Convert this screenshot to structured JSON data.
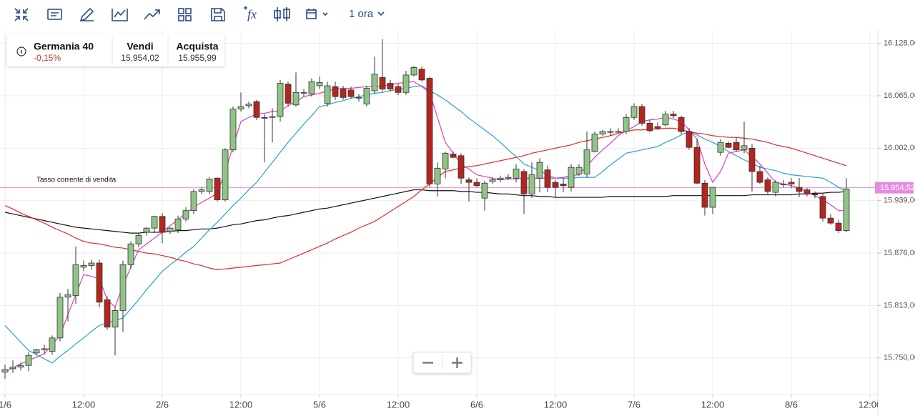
{
  "toolbar": {
    "timeframe": "1 ora"
  },
  "instrument": {
    "name": "Germania 40",
    "change": "-0,15%",
    "sell_label": "Vendi",
    "sell_price": "15.954,02",
    "buy_label": "Acquista",
    "buy_price": "15.955,99"
  },
  "chart_data": {
    "type": "candlestick",
    "categories": [
      "1/6",
      null,
      null,
      null,
      null,
      null,
      null,
      null,
      null,
      null,
      "12:00",
      null,
      null,
      null,
      null,
      null,
      null,
      null,
      null,
      null,
      "2/6",
      null,
      null,
      null,
      null,
      null,
      null,
      null,
      null,
      null,
      "12:00",
      null,
      null,
      null,
      null,
      null,
      null,
      null,
      null,
      null,
      "5/6",
      null,
      null,
      null,
      null,
      null,
      null,
      null,
      null,
      null,
      "12:00",
      null,
      null,
      null,
      null,
      null,
      null,
      null,
      null,
      null,
      "6/6",
      null,
      null,
      null,
      null,
      null,
      null,
      null,
      null,
      null,
      "12:00",
      null,
      null,
      null,
      null,
      null,
      null,
      null,
      null,
      null,
      "7/6",
      null,
      null,
      null,
      null,
      null,
      null,
      null,
      null,
      null,
      "12:00",
      null,
      null,
      null,
      null,
      null,
      null,
      null,
      null,
      null,
      "8/6",
      null,
      null,
      null,
      null,
      null,
      null,
      null,
      null,
      null,
      "12:00"
    ],
    "open": [
      15733,
      15737,
      15739,
      15741,
      15756,
      15760,
      15758,
      15774,
      15823,
      15825,
      15859,
      15861,
      15864,
      15820,
      15787,
      15807,
      15862,
      15887,
      15901,
      15906,
      15920,
      15902,
      15904,
      15917,
      15927,
      15950,
      15950,
      15966,
      15940,
      16000,
      16049,
      16053,
      16058,
      16039,
      16039,
      16040,
      16079,
      16054,
      16069,
      16067,
      16077,
      16056,
      16076,
      16073,
      16072,
      16063,
      16055,
      16071,
      16087,
      16080,
      16076,
      16069,
      16090,
      16097,
      16086,
      15959,
      15977,
      15995,
      15993,
      15964,
      15961,
      15942,
      15962,
      15964,
      15966,
      15966,
      15974,
      15947,
      15966,
      15976,
      15961,
      15959,
      15955,
      15971,
      15971,
      15998,
      16019,
      16021,
      16022,
      16022,
      16039,
      16052,
      16032,
      16028,
      16030,
      16043,
      16039,
      16022,
      16003,
      15960,
      15931,
      15997,
      16008,
      16009,
      16000,
      16002,
      15974,
      15964,
      15949,
      15959,
      15961,
      15955,
      15952,
      15947,
      15944,
      15918,
      15912,
      15903,
      null,
      null,
      null
    ],
    "high": [
      15742,
      15747,
      15744,
      15757,
      15761,
      15766,
      15777,
      15828,
      15833,
      15884,
      15867,
      15868,
      15868,
      15824,
      15811,
      15867,
      15890,
      15900,
      15907,
      15921,
      15924,
      15907,
      15921,
      15931,
      15953,
      15955,
      15967,
      15967,
      16002,
      16052,
      16069,
      16058,
      16060,
      16043,
      16050,
      16084,
      16082,
      16093,
      16073,
      16086,
      16088,
      16082,
      16082,
      16077,
      16076,
      16067,
      16077,
      16112,
      16133,
      16084,
      16079,
      16095,
      16101,
      16100,
      16088,
      15985,
      15998,
      15998,
      15996,
      15967,
      15966,
      15963,
      15967,
      15969,
      15971,
      15983,
      15977,
      15985,
      15990,
      15981,
      15964,
      15966,
      15983,
      15983,
      16022,
      16022,
      16024,
      16026,
      16026,
      16043,
      16056,
      16055,
      16036,
      16033,
      16047,
      16047,
      16041,
      16026,
      16013,
      15964,
      15955,
      16013,
      16010,
      16015,
      16034,
      16007,
      15981,
      15967,
      15964,
      15964,
      15966,
      15966,
      15954,
      15950,
      15947,
      15923,
      15916,
      15966,
      null,
      null,
      null
    ],
    "low": [
      15725,
      15732,
      15735,
      15734,
      15753,
      15755,
      15754,
      15770,
      15794,
      15815,
      15854,
      15856,
      15811,
      15784,
      15753,
      15781,
      15857,
      15883,
      15897,
      15900,
      15888,
      15899,
      15900,
      15914,
      15923,
      15947,
      15947,
      15938,
      15938,
      15997,
      16046,
      16050,
      16036,
      15985,
      16009,
      16034,
      16052,
      16052,
      16064,
      16064,
      16073,
      16052,
      16060,
      16060,
      16062,
      16058,
      16052,
      16067,
      16070,
      16070,
      16066,
      16066,
      16088,
      16082,
      15955,
      15944,
      15966,
      15990,
      15959,
      15938,
      15955,
      15927,
      15959,
      15961,
      15964,
      15961,
      15923,
      15942,
      15949,
      15949,
      15942,
      15949,
      15950,
      15969,
      15967,
      15997,
      16017,
      16017,
      16021,
      16019,
      16036,
      16029,
      16021,
      16024,
      16028,
      16038,
      16019,
      16000,
      15959,
      15921,
      15923,
      15993,
      16002,
      15998,
      15996,
      15950,
      15959,
      15947,
      15944,
      15955,
      15954,
      15943,
      15944,
      15942,
      15914,
      15910,
      15900,
      15901,
      null,
      null,
      null
    ],
    "close": [
      15736,
      15739,
      15741,
      15753,
      15760,
      15761,
      15774,
      15823,
      15826,
      15862,
      15861,
      15864,
      15817,
      15787,
      15807,
      15862,
      15887,
      15897,
      15906,
      15920,
      15901,
      15906,
      15917,
      15927,
      15950,
      15952,
      15965,
      15940,
      16000,
      16049,
      16052,
      16055,
      16039,
      16038,
      16040,
      16080,
      16056,
      16069,
      16069,
      16082,
      16081,
      16077,
      16064,
      16063,
      16064,
      16063,
      16074,
      16091,
      16073,
      16073,
      16069,
      16090,
      16099,
      16084,
      15959,
      15978,
      15996,
      15991,
      15966,
      15961,
      15957,
      15960,
      15964,
      15966,
      15967,
      15977,
      15947,
      15970,
      15985,
      15955,
      15955,
      15957,
      15979,
      15979,
      16000,
      16019,
      16022,
      16022,
      16022,
      16039,
      16052,
      16032,
      16023,
      16026,
      16043,
      16041,
      16022,
      16003,
      15960,
      15931,
      15955,
      16009,
      16003,
      16000,
      16005,
      15974,
      15961,
      15950,
      15961,
      15959,
      15959,
      15950,
      15947,
      15946,
      15918,
      15912,
      15903,
      15953,
      null,
      null,
      null
    ],
    "up_color": "#8fc486",
    "down_color": "#b3261e",
    "series": [
      {
        "name": null,
        "color": "#111111",
        "values": [
          15925,
          15923,
          15921,
          15919,
          15917,
          15915,
          15913,
          15911,
          15909,
          15907,
          15906,
          15905,
          15904,
          15903,
          15902,
          15901,
          15900,
          15900,
          15901,
          15901,
          15901,
          15902,
          15903,
          15903,
          15904,
          15905,
          15905,
          15906,
          15908,
          15910,
          15911,
          15913,
          15915,
          15916,
          15918,
          15920,
          15921,
          15923,
          15925,
          15927,
          15929,
          15930,
          15932,
          15934,
          15936,
          15938,
          15940,
          15942,
          15944,
          15946,
          15948,
          15950,
          15952,
          15952,
          15951,
          15951,
          15951,
          15951,
          15950,
          15950,
          15949,
          15949,
          15948,
          15947,
          15947,
          15946,
          15945,
          15945,
          15944,
          15944,
          15943,
          15943,
          15943,
          15943,
          15943,
          15943,
          15943,
          15944,
          15944,
          15944,
          15944,
          15944,
          15944,
          15944,
          15944,
          15945,
          15945,
          15945,
          15945,
          15945,
          15945,
          15945,
          15945,
          15945,
          15945,
          15946,
          15946,
          15946,
          15946,
          15946,
          15946,
          15947,
          15947,
          15948,
          15948,
          15949,
          15949,
          15950,
          null,
          null,
          null
        ]
      },
      {
        "name": null,
        "color": "#e02b2b",
        "values": [
          15933,
          15929,
          15924,
          15920,
          15916,
          15912,
          15907,
          15903,
          15899,
          15894,
          15890,
          15888,
          15887,
          15885,
          15883,
          15882,
          15880,
          15878,
          15876,
          15875,
          15873,
          15871,
          15868,
          15866,
          15863,
          15861,
          15858,
          15856,
          15857,
          15858,
          15859,
          15860,
          15861,
          15862,
          15863,
          15864,
          15868,
          15872,
          15876,
          15880,
          15884,
          15888,
          15893,
          15897,
          15901,
          15906,
          15910,
          15914,
          15920,
          15926,
          15932,
          15938,
          15944,
          15952,
          15959,
          15967,
          15974,
          15976,
          15978,
          15980,
          15981,
          15983,
          15985,
          15987,
          15989,
          15991,
          15993,
          15996,
          15998,
          16000,
          16002,
          16004,
          16006,
          16009,
          16011,
          16013,
          16015,
          16017,
          16020,
          16022,
          16024,
          16024,
          16025,
          16025,
          16026,
          16026,
          16024,
          16022,
          16020,
          16019,
          16017,
          16016,
          16015,
          16015,
          16014,
          16013,
          16011,
          16009,
          16006,
          16004,
          16002,
          15999,
          15996,
          15993,
          15990,
          15987,
          15984,
          15981,
          null,
          null,
          null
        ]
      },
      {
        "name": null,
        "color": "#2b9fd6",
        "values": [
          15789,
          15779,
          15769,
          15759,
          15754,
          15749,
          15744,
          15752,
          15759,
          15767,
          15774,
          15782,
          15789,
          15792,
          15795,
          15798,
          15809,
          15820,
          15832,
          15843,
          15854,
          15862,
          15869,
          15877,
          15884,
          15894,
          15904,
          15913,
          15923,
          15933,
          15942,
          15952,
          15961,
          15973,
          15985,
          15997,
          16009,
          16020,
          16031,
          16041,
          16052,
          16054,
          16057,
          16059,
          16062,
          16064,
          16066,
          16068,
          16069,
          16071,
          16073,
          16074,
          16076,
          16077,
          16071,
          16066,
          16060,
          16053,
          16046,
          16038,
          16031,
          16024,
          16017,
          16009,
          16000,
          15992,
          15983,
          15979,
          15975,
          15970,
          15966,
          15966,
          15966,
          15967,
          15967,
          15967,
          15974,
          15982,
          15989,
          15996,
          15998,
          16000,
          16002,
          16004,
          16009,
          16013,
          16018,
          16022,
          16018,
          16013,
          16009,
          16004,
          15998,
          15993,
          15988,
          15984,
          15979,
          15977,
          15975,
          15972,
          15970,
          15969,
          15968,
          15967,
          15966,
          15961,
          15955,
          15950,
          null,
          null,
          null
        ]
      },
      {
        "name": null,
        "color": "#e33fb5",
        "values": [
          15734,
          15738,
          15743,
          15747,
          15751,
          15755,
          15766,
          15777,
          15802,
          15826,
          15850,
          15848,
          15845,
          15820,
          15811,
          15837,
          15859,
          15880,
          15887,
          15894,
          15901,
          15909,
          15916,
          15924,
          15931,
          15937,
          15942,
          15948,
          15974,
          16004,
          16034,
          16039,
          16043,
          16044,
          16046,
          16047,
          16053,
          16058,
          16064,
          16066,
          16068,
          16071,
          16073,
          16074,
          16074,
          16075,
          16076,
          16076,
          16077,
          16078,
          16080,
          16081,
          16082,
          16076,
          16069,
          16039,
          16009,
          15996,
          15983,
          15977,
          15970,
          15968,
          15966,
          15964,
          15965,
          15965,
          15966,
          15966,
          15966,
          15966,
          15966,
          15967,
          15969,
          15970,
          15981,
          15991,
          16000,
          16008,
          16017,
          16023,
          16028,
          16034,
          16036,
          16037,
          16039,
          16037,
          16034,
          16024,
          16013,
          15983,
          15961,
          15974,
          15996,
          15998,
          16000,
          15992,
          15983,
          15972,
          15961,
          15959,
          15957,
          15954,
          15950,
          15945,
          15940,
          15934,
          15927,
          15927,
          null,
          null,
          null
        ]
      }
    ],
    "current": {
      "label": "Tasso corrente di vendita",
      "value": 15954.52,
      "value_label": "15.954,52",
      "color": "#e58be0"
    },
    "ylim": [
      15706,
      16144
    ],
    "yticks": [
      {
        "value": 15750,
        "label": "15.750,00"
      },
      {
        "value": 15813,
        "label": "15.813,00"
      },
      {
        "value": 15876,
        "label": "15.876,00"
      },
      {
        "value": 15939,
        "label": "15.939,00"
      },
      {
        "value": 16002,
        "label": "16.002,00"
      },
      {
        "value": 16065,
        "label": "16.065,00"
      },
      {
        "value": 16128,
        "label": "16.128,00"
      }
    ],
    "grid": true
  }
}
